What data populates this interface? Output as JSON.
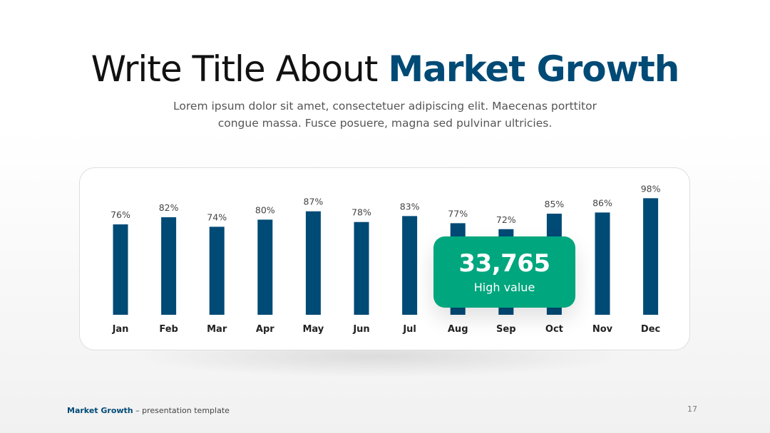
{
  "header": {
    "title_plain": "Write Title About ",
    "title_accent": "Market Growth",
    "subtitle": "Lorem ipsum dolor sit amet, consectetuer adipiscing elit. Maecenas porttitor congue massa. Fusce posuere, magna sed pulvinar ultricies."
  },
  "callout": {
    "value": "33,765",
    "label": "High value",
    "color": "#00a67e"
  },
  "footer": {
    "brand": "Market Growth",
    "text": " – presentation template",
    "page": "17"
  },
  "colors": {
    "bar": "#004a76",
    "accent": "#004a76"
  },
  "chart_data": {
    "type": "bar",
    "categories": [
      "Jan",
      "Feb",
      "Mar",
      "Apr",
      "May",
      "Jun",
      "Jul",
      "Aug",
      "Sep",
      "Oct",
      "Nov",
      "Dec"
    ],
    "values": [
      76,
      82,
      74,
      80,
      87,
      78,
      83,
      77,
      72,
      85,
      86,
      98
    ],
    "value_labels": [
      "76%",
      "82%",
      "74%",
      "80%",
      "87%",
      "78%",
      "83%",
      "77%",
      "72%",
      "85%",
      "86%",
      "98%"
    ],
    "ylim": [
      0,
      100
    ],
    "grid": false,
    "legend": "none"
  }
}
